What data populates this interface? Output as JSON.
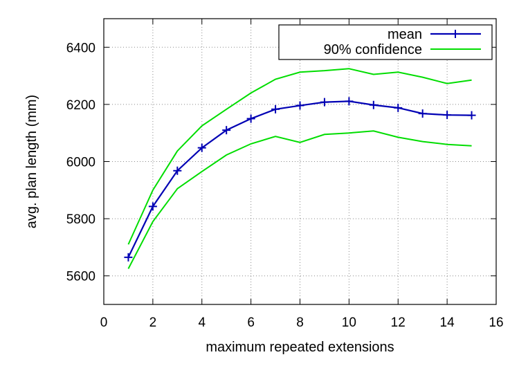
{
  "chart_data": {
    "type": "line",
    "title": "",
    "xlabel": "maximum repeated extensions",
    "ylabel": "avg. plan length (mm)",
    "xlim": [
      0,
      16
    ],
    "ylim": [
      5500,
      6500
    ],
    "xticks": [
      0,
      2,
      4,
      6,
      8,
      10,
      12,
      14,
      16
    ],
    "yticks": [
      5600,
      5800,
      6000,
      6200,
      6400
    ],
    "grid": true,
    "legend_position": "top-right",
    "x": [
      1,
      2,
      3,
      4,
      5,
      6,
      7,
      8,
      9,
      10,
      11,
      12,
      13,
      14,
      15
    ],
    "series": [
      {
        "name": "mean",
        "color": "#0000b4",
        "marker": "plus",
        "values": [
          5665,
          5843,
          5968,
          6048,
          6110,
          6150,
          6183,
          6196,
          6208,
          6211,
          6198,
          6188,
          6168,
          6163,
          6162
        ]
      },
      {
        "name": "90% confidence",
        "color": "#00dd00",
        "marker": "none",
        "values": [
          5710,
          5900,
          6037,
          6125,
          6183,
          6240,
          6288,
          6313,
          6318,
          6325,
          6305,
          6313,
          6295,
          6273,
          6285
        ]
      },
      {
        "name": "",
        "legend_ref": "90% confidence",
        "color": "#00dd00",
        "marker": "none",
        "values": [
          5625,
          5790,
          5905,
          5965,
          6023,
          6062,
          6088,
          6067,
          6095,
          6100,
          6107,
          6085,
          6070,
          6060,
          6055
        ]
      }
    ]
  }
}
